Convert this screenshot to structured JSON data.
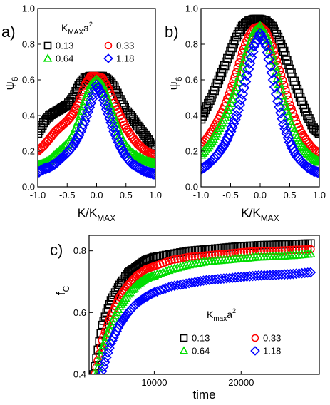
{
  "chart_data": [
    {
      "type": "scatter",
      "panel_label": "a)",
      "xlabel": "K/K",
      "xlabel_sub": "MAX",
      "ylabel": "ψ",
      "ylabel_sub": "6",
      "xlim": [
        -1.0,
        1.0
      ],
      "ylim": [
        0.0,
        1.0
      ],
      "x_ticks": [
        "-1.0",
        "-0.5",
        "0.0",
        "0.5",
        "1.0"
      ],
      "y_ticks": [
        "0.0",
        "0.2",
        "0.4",
        "0.6",
        "0.8",
        "1.0"
      ],
      "legend_title": "K",
      "legend_title_sub": "MAX",
      "legend_title_tail": "a",
      "legend_title_sup": "2",
      "series": [
        {
          "name": "0.13",
          "marker": "square",
          "color": "#000000",
          "x": [
            -1.0,
            -0.9,
            -0.8,
            -0.7,
            -0.6,
            -0.5,
            -0.4,
            -0.3,
            -0.2,
            -0.1,
            0.0,
            0.1,
            0.2,
            0.3,
            0.4,
            0.5,
            0.6,
            0.7,
            0.8,
            0.9,
            1.0
          ],
          "y": [
            0.3,
            0.36,
            0.4,
            0.42,
            0.44,
            0.46,
            0.5,
            0.57,
            0.61,
            0.62,
            0.62,
            0.62,
            0.6,
            0.56,
            0.49,
            0.43,
            0.39,
            0.34,
            0.3,
            0.25,
            0.21
          ]
        },
        {
          "name": "0.33",
          "marker": "circle",
          "color": "#ff0000",
          "x": [
            -1.0,
            -0.9,
            -0.8,
            -0.7,
            -0.6,
            -0.5,
            -0.4,
            -0.3,
            -0.2,
            -0.1,
            0.0,
            0.1,
            0.2,
            0.3,
            0.4,
            0.5,
            0.6,
            0.7,
            0.8,
            0.9,
            1.0
          ],
          "y": [
            0.2,
            0.23,
            0.27,
            0.31,
            0.34,
            0.37,
            0.41,
            0.47,
            0.57,
            0.62,
            0.62,
            0.61,
            0.55,
            0.47,
            0.4,
            0.33,
            0.28,
            0.24,
            0.21,
            0.19,
            0.18
          ]
        },
        {
          "name": "0.64",
          "marker": "triangle",
          "color": "#00dd00",
          "x": [
            -1.0,
            -0.9,
            -0.8,
            -0.7,
            -0.6,
            -0.5,
            -0.4,
            -0.3,
            -0.2,
            -0.1,
            0.0,
            0.1,
            0.2,
            0.3,
            0.4,
            0.5,
            0.6,
            0.7,
            0.8,
            0.9,
            1.0
          ],
          "y": [
            0.12,
            0.13,
            0.15,
            0.18,
            0.21,
            0.24,
            0.29,
            0.37,
            0.48,
            0.57,
            0.6,
            0.57,
            0.48,
            0.38,
            0.29,
            0.23,
            0.19,
            0.17,
            0.15,
            0.14,
            0.13
          ]
        },
        {
          "name": "1.18",
          "marker": "diamond",
          "color": "#0000ff",
          "x": [
            -1.0,
            -0.9,
            -0.8,
            -0.7,
            -0.6,
            -0.5,
            -0.4,
            -0.3,
            -0.2,
            -0.1,
            0.0,
            0.1,
            0.2,
            0.3,
            0.4,
            0.5,
            0.6,
            0.7,
            0.8,
            0.9,
            1.0
          ],
          "y": [
            0.08,
            0.1,
            0.11,
            0.13,
            0.16,
            0.19,
            0.23,
            0.29,
            0.37,
            0.47,
            0.57,
            0.51,
            0.41,
            0.31,
            0.23,
            0.17,
            0.13,
            0.11,
            0.09,
            0.08,
            0.07
          ]
        }
      ]
    },
    {
      "type": "scatter",
      "panel_label": "b)",
      "xlabel": "K/K",
      "xlabel_sub": "MAX",
      "ylabel": "ψ",
      "ylabel_sub": "6",
      "xlim": [
        -1.0,
        1.0
      ],
      "ylim": [
        0.0,
        1.0
      ],
      "x_ticks": [
        "-1.0",
        "-0.5",
        "0.0",
        "0.5",
        "1.0"
      ],
      "y_ticks": [
        "0.0",
        "0.2",
        "0.4",
        "0.6",
        "0.8",
        "1.0"
      ],
      "series": [
        {
          "name": "0.13",
          "marker": "square",
          "color": "#000000",
          "x": [
            -1.0,
            -0.9,
            -0.8,
            -0.7,
            -0.6,
            -0.5,
            -0.4,
            -0.3,
            -0.2,
            -0.1,
            0.0,
            0.1,
            0.2,
            0.3,
            0.4,
            0.5,
            0.6,
            0.7,
            0.8,
            0.9,
            1.0
          ],
          "y": [
            0.38,
            0.45,
            0.52,
            0.6,
            0.68,
            0.76,
            0.84,
            0.9,
            0.93,
            0.94,
            0.94,
            0.93,
            0.9,
            0.84,
            0.76,
            0.66,
            0.57,
            0.48,
            0.4,
            0.33,
            0.3
          ]
        },
        {
          "name": "0.33",
          "marker": "circle",
          "color": "#ff0000",
          "x": [
            -1.0,
            -0.9,
            -0.8,
            -0.7,
            -0.6,
            -0.5,
            -0.4,
            -0.3,
            -0.2,
            -0.1,
            0.0,
            0.1,
            0.2,
            0.3,
            0.4,
            0.5,
            0.6,
            0.7,
            0.8,
            0.9,
            1.0
          ],
          "y": [
            0.23,
            0.27,
            0.32,
            0.38,
            0.45,
            0.54,
            0.64,
            0.75,
            0.84,
            0.89,
            0.9,
            0.87,
            0.79,
            0.68,
            0.57,
            0.46,
            0.37,
            0.3,
            0.25,
            0.21,
            0.19
          ]
        },
        {
          "name": "0.64",
          "marker": "triangle",
          "color": "#00dd00",
          "x": [
            -1.0,
            -0.9,
            -0.8,
            -0.7,
            -0.6,
            -0.5,
            -0.4,
            -0.3,
            -0.2,
            -0.1,
            0.0,
            0.1,
            0.2,
            0.3,
            0.4,
            0.5,
            0.6,
            0.7,
            0.8,
            0.9,
            1.0
          ],
          "y": [
            0.18,
            0.22,
            0.27,
            0.33,
            0.39,
            0.47,
            0.56,
            0.67,
            0.78,
            0.87,
            0.9,
            0.85,
            0.74,
            0.61,
            0.48,
            0.37,
            0.29,
            0.23,
            0.19,
            0.16,
            0.14
          ]
        },
        {
          "name": "1.18",
          "marker": "diamond",
          "color": "#0000ff",
          "x": [
            -1.0,
            -0.9,
            -0.8,
            -0.7,
            -0.6,
            -0.5,
            -0.4,
            -0.3,
            -0.2,
            -0.1,
            0.0,
            0.1,
            0.2,
            0.3,
            0.4,
            0.5,
            0.6,
            0.7,
            0.8,
            0.9,
            1.0
          ],
          "y": [
            0.1,
            0.12,
            0.15,
            0.19,
            0.24,
            0.31,
            0.4,
            0.52,
            0.66,
            0.79,
            0.86,
            0.79,
            0.64,
            0.48,
            0.35,
            0.25,
            0.18,
            0.14,
            0.11,
            0.09,
            0.08
          ]
        }
      ]
    },
    {
      "type": "scatter",
      "panel_label": "c)",
      "xlabel": "time",
      "ylabel": "f",
      "ylabel_sub": "C",
      "xlim": [
        2500,
        29000
      ],
      "ylim": [
        0.4,
        0.85
      ],
      "x_ticks": [
        {
          "value": 10000,
          "label": "10000"
        },
        {
          "value": 20000,
          "label": "20000"
        }
      ],
      "y_ticks": [
        {
          "value": 0.4,
          "label": "0.4"
        },
        {
          "value": 0.6,
          "label": "0.6"
        },
        {
          "value": 0.8,
          "label": "0.8"
        }
      ],
      "legend_title": "K",
      "legend_title_sub": "max",
      "legend_title_tail": "a",
      "legend_title_sup": "2",
      "series": [
        {
          "name": "0.13",
          "marker": "square",
          "color": "#000000",
          "x": [
            3000,
            4000,
            5000,
            6000,
            7000,
            8000,
            9000,
            10000,
            12000,
            14000,
            16000,
            18000,
            20000,
            22000,
            24000,
            26000,
            28000
          ],
          "y": [
            0.4,
            0.56,
            0.64,
            0.69,
            0.73,
            0.75,
            0.77,
            0.78,
            0.79,
            0.8,
            0.805,
            0.81,
            0.815,
            0.818,
            0.82,
            0.822,
            0.824
          ]
        },
        {
          "name": "0.33",
          "marker": "circle",
          "color": "#ff0000",
          "x": [
            3000,
            4000,
            5000,
            6000,
            7000,
            8000,
            9000,
            10000,
            12000,
            14000,
            16000,
            18000,
            20000,
            22000,
            24000,
            26000,
            28000
          ],
          "y": [
            0.38,
            0.51,
            0.59,
            0.65,
            0.69,
            0.72,
            0.74,
            0.75,
            0.77,
            0.78,
            0.785,
            0.79,
            0.795,
            0.8,
            0.8,
            0.803,
            0.805
          ]
        },
        {
          "name": "0.64",
          "marker": "triangle",
          "color": "#00dd00",
          "x": [
            3000,
            4000,
            5000,
            6000,
            7000,
            8000,
            9000,
            10000,
            12000,
            14000,
            16000,
            18000,
            20000,
            22000,
            24000,
            26000,
            28000
          ],
          "y": [
            0.36,
            0.48,
            0.56,
            0.62,
            0.66,
            0.69,
            0.71,
            0.72,
            0.74,
            0.755,
            0.765,
            0.77,
            0.775,
            0.78,
            0.782,
            0.785,
            0.79
          ]
        },
        {
          "name": "1.18",
          "marker": "diamond",
          "color": "#0000ff",
          "x": [
            3000,
            4000,
            5000,
            6000,
            7000,
            8000,
            9000,
            10000,
            12000,
            14000,
            16000,
            18000,
            20000,
            22000,
            24000,
            26000,
            28000
          ],
          "y": [
            0.33,
            0.41,
            0.5,
            0.56,
            0.6,
            0.63,
            0.65,
            0.665,
            0.685,
            0.695,
            0.705,
            0.71,
            0.715,
            0.72,
            0.722,
            0.725,
            0.73
          ]
        }
      ]
    }
  ]
}
